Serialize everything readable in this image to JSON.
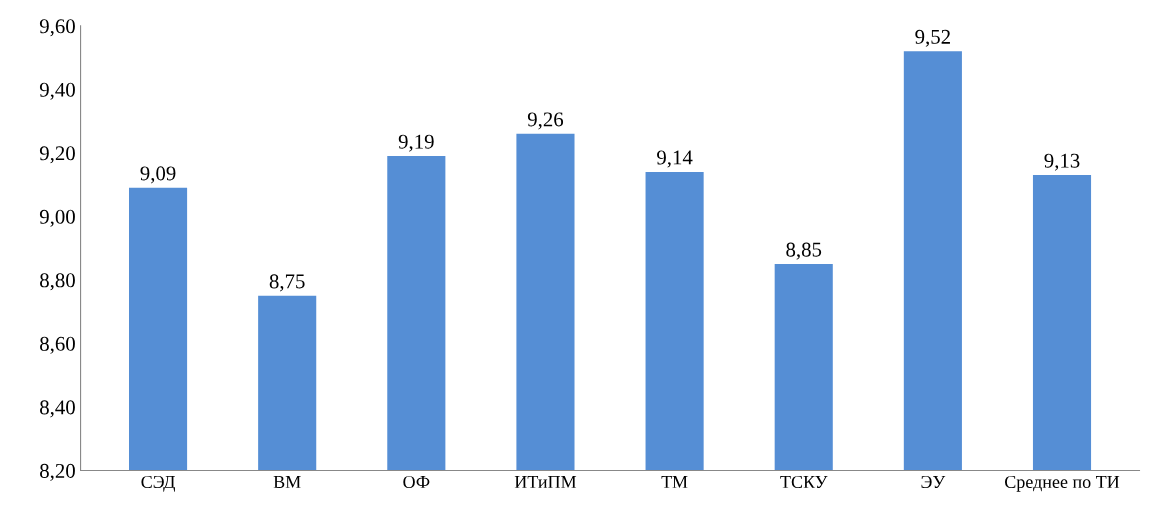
{
  "chart_data": {
    "type": "bar",
    "categories": [
      "СЭД",
      "ВМ",
      "ОФ",
      "ИТиПМ",
      "ТМ",
      "ТСКУ",
      "ЭУ",
      "Среднее по ТИ"
    ],
    "values": [
      9.09,
      8.75,
      9.19,
      9.26,
      9.14,
      8.85,
      9.52,
      9.13
    ],
    "value_labels": [
      "9,09",
      "8,75",
      "9,19",
      "9,26",
      "9,14",
      "8,85",
      "9,52",
      "9,13"
    ],
    "color": "#558ed5",
    "ylim": [
      8.2,
      9.6
    ],
    "yticks": [
      {
        "value": 8.2,
        "label": "8,20"
      },
      {
        "value": 8.4,
        "label": "8,40"
      },
      {
        "value": 8.6,
        "label": "8,60"
      },
      {
        "value": 8.8,
        "label": "8,80"
      },
      {
        "value": 9.0,
        "label": "9,00"
      },
      {
        "value": 9.2,
        "label": "9,20"
      },
      {
        "value": 9.4,
        "label": "9,40"
      },
      {
        "value": 9.6,
        "label": "9,60"
      }
    ],
    "grid": false
  }
}
